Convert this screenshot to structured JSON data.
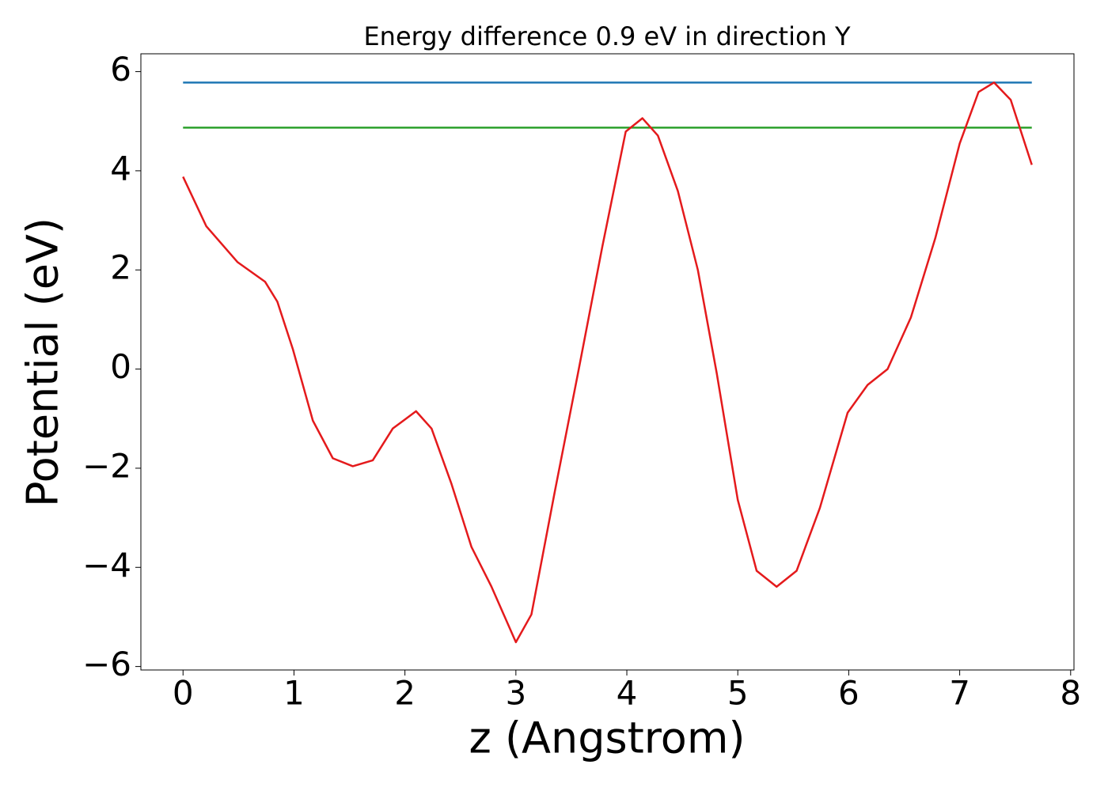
{
  "chart_data": {
    "type": "line",
    "title": "Energy difference 0.9 eV in direction Y",
    "xlabel": "z (Angstrom)",
    "ylabel": "Potential (eV)",
    "xlim": [
      -0.38,
      8.03
    ],
    "ylim": [
      -6.07,
      6.36
    ],
    "xticks": [
      0,
      1,
      2,
      3,
      4,
      5,
      6,
      7,
      8
    ],
    "yticks": [
      {
        "value": -6,
        "label": "−6"
      },
      {
        "value": -4,
        "label": "−4"
      },
      {
        "value": -2,
        "label": "−2"
      },
      0,
      2,
      4,
      6
    ],
    "series": [
      {
        "color": "#1f77b4",
        "x": [
          0,
          7.65
        ],
        "values": [
          5.78,
          5.78
        ]
      },
      {
        "color": "#2ca02c",
        "x": [
          0,
          7.65
        ],
        "values": [
          4.87,
          4.87
        ]
      },
      {
        "color": "#e41a1c",
        "x": [
          0,
          0.21,
          0.49,
          0.74,
          0.85,
          0.99,
          1.17,
          1.35,
          1.53,
          1.71,
          1.89,
          2.1,
          2.24,
          2.42,
          2.6,
          2.78,
          3.0,
          3.14,
          3.35,
          3.56,
          3.78,
          3.99,
          4.14,
          4.28,
          4.46,
          4.64,
          4.81,
          5.0,
          5.17,
          5.35,
          5.53,
          5.74,
          5.99,
          6.17,
          6.35,
          6.56,
          6.78,
          7.0,
          7.17,
          7.31,
          7.46,
          7.65
        ],
        "values": [
          3.88,
          2.88,
          2.16,
          1.76,
          1.36,
          0.4,
          -1.04,
          -1.8,
          -1.96,
          -1.84,
          -1.2,
          -0.85,
          -1.2,
          -2.32,
          -3.59,
          -4.39,
          -5.51,
          -4.95,
          -2.48,
          -0.08,
          2.48,
          4.79,
          5.06,
          4.71,
          3.59,
          2.0,
          -0.08,
          -2.64,
          -4.07,
          -4.39,
          -4.07,
          -2.8,
          -0.88,
          -0.32,
          0,
          1.04,
          2.64,
          4.55,
          5.59,
          5.78,
          5.43,
          4.12
        ]
      }
    ]
  }
}
